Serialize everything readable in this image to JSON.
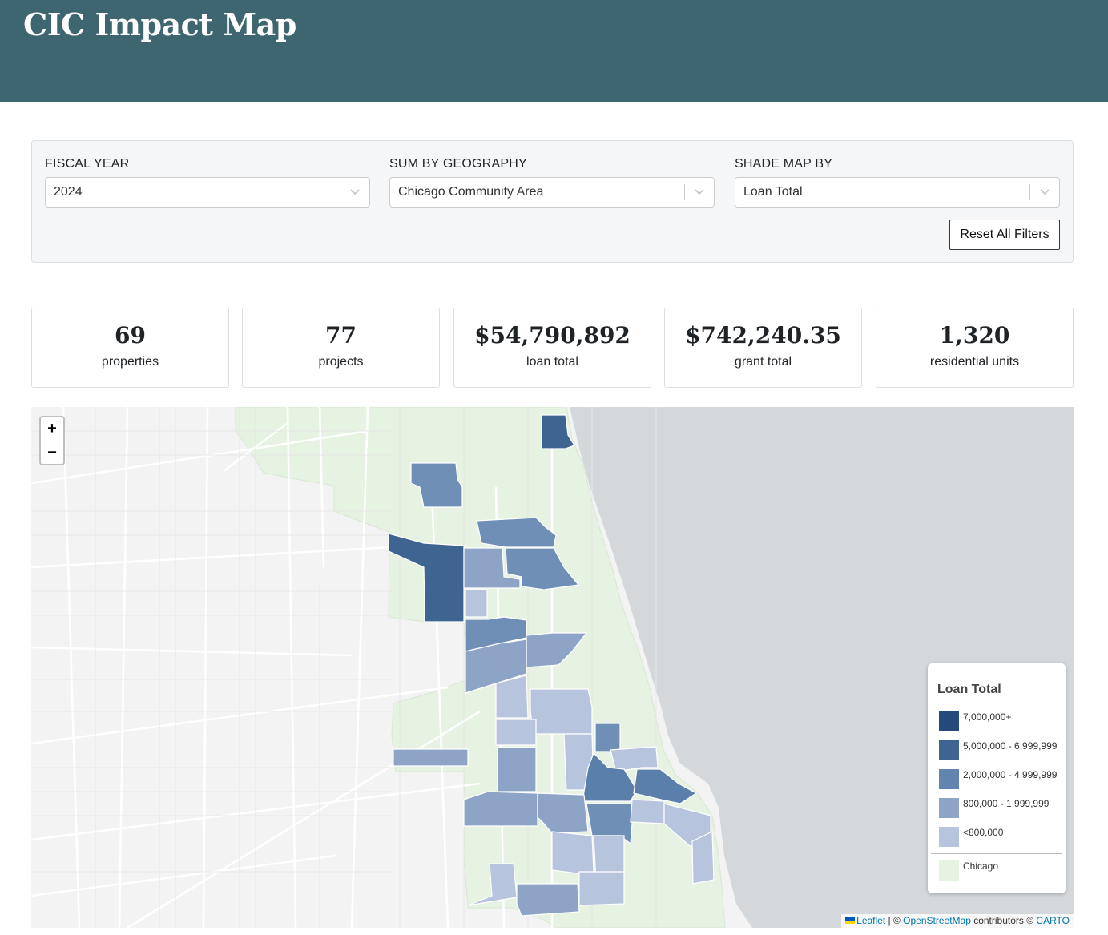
{
  "header": {
    "title": "CIC Impact Map"
  },
  "filters": {
    "fiscal_year": {
      "label": "FISCAL YEAR",
      "value": "2024"
    },
    "geography": {
      "label": "SUM BY GEOGRAPHY",
      "value": "Chicago Community Area"
    },
    "shade": {
      "label": "SHADE MAP BY",
      "value": "Loan Total"
    },
    "reset_label": "Reset All Filters"
  },
  "stats": [
    {
      "value": "69",
      "label": "properties"
    },
    {
      "value": "77",
      "label": "projects"
    },
    {
      "value": "$54,790,892",
      "label": "loan total"
    },
    {
      "value": "$742,240.35",
      "label": "grant total"
    },
    {
      "value": "1,320",
      "label": "residential units"
    }
  ],
  "map": {
    "zoom_in": "+",
    "zoom_out": "−",
    "legend": {
      "title": "Loan Total",
      "items": [
        {
          "label": "7,000,000+",
          "color": "#24497a"
        },
        {
          "label": "5,000,000 - 6,999,999",
          "color": "#3e6592"
        },
        {
          "label": "2,000,000 - 4,999,999",
          "color": "#6285b0"
        },
        {
          "label": "800,000 - 1,999,999",
          "color": "#8da4c7"
        },
        {
          "label": "<800,000",
          "color": "#b7c4de"
        }
      ],
      "base": {
        "label": "Chicago",
        "color": "#e6f2e2"
      }
    },
    "attribution": {
      "leaflet": "Leaflet",
      "sep1": " | © ",
      "osm": "OpenStreetMap",
      "mid": " contributors © ",
      "carto": "CARTO"
    },
    "colors": {
      "land": "#f2f3f2",
      "water": "#d4d8db",
      "chicago": "#e6f2e2"
    }
  }
}
